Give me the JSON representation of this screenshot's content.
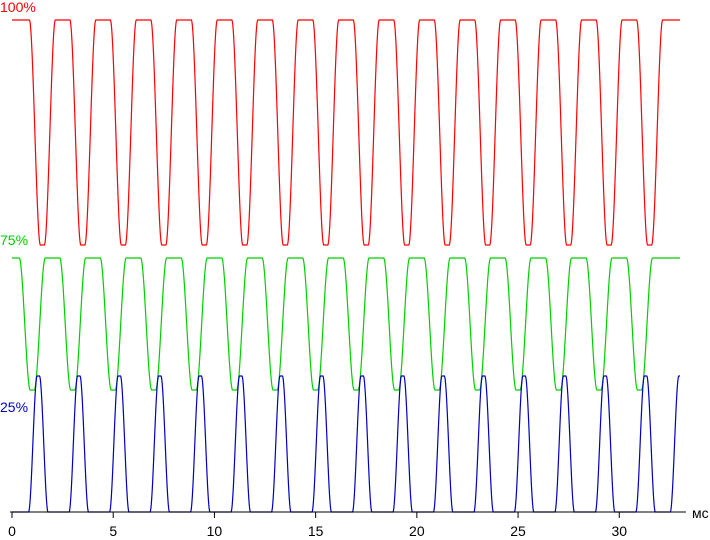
{
  "chart_data": {
    "type": "line",
    "title": "",
    "xlabel": "мс",
    "ylabel": "",
    "xlim": [
      0,
      34
    ],
    "x_ticks": [
      "0",
      "5",
      "10",
      "15",
      "20",
      "25",
      "30"
    ],
    "grid": false,
    "series": [
      {
        "name": "100%",
        "color": "#ff0000",
        "description": "dips to minimum once per period, otherwise at maximum",
        "level_max": 1.0,
        "level_min": 0.0,
        "period_ms": 2.0,
        "dip_centers_ms": [
          1.5,
          3.5,
          5.5,
          7.5,
          9.5,
          11.5,
          13.5,
          15.5,
          17.5,
          19.5,
          21.5,
          23.5,
          25.5,
          27.5,
          29.5,
          31.5
        ],
        "dip_width_ms": 0.8
      },
      {
        "name": "75%",
        "color": "#00d000",
        "description": "dips to minimum once per period",
        "level_max": 1.0,
        "level_min": 0.0,
        "period_ms": 2.0,
        "dip_centers_ms": [
          1.0,
          3.0,
          5.0,
          7.0,
          9.0,
          11.0,
          13.0,
          15.0,
          17.0,
          19.0,
          21.0,
          23.0,
          25.0,
          27.0,
          29.0,
          31.0
        ],
        "dip_width_ms": 0.8
      },
      {
        "name": "25%",
        "color": "#0000c0",
        "description": "short peaks once per period, otherwise at minimum",
        "level_max": 1.0,
        "level_min": 0.0,
        "period_ms": 2.0,
        "peak_centers_ms": [
          1.3,
          3.3,
          5.3,
          7.3,
          9.3,
          11.3,
          13.3,
          15.3,
          17.3,
          19.3,
          21.3,
          23.3,
          25.3,
          27.3,
          29.3,
          31.3,
          33.0
        ],
        "peak_width_ms": 0.8
      }
    ]
  }
}
